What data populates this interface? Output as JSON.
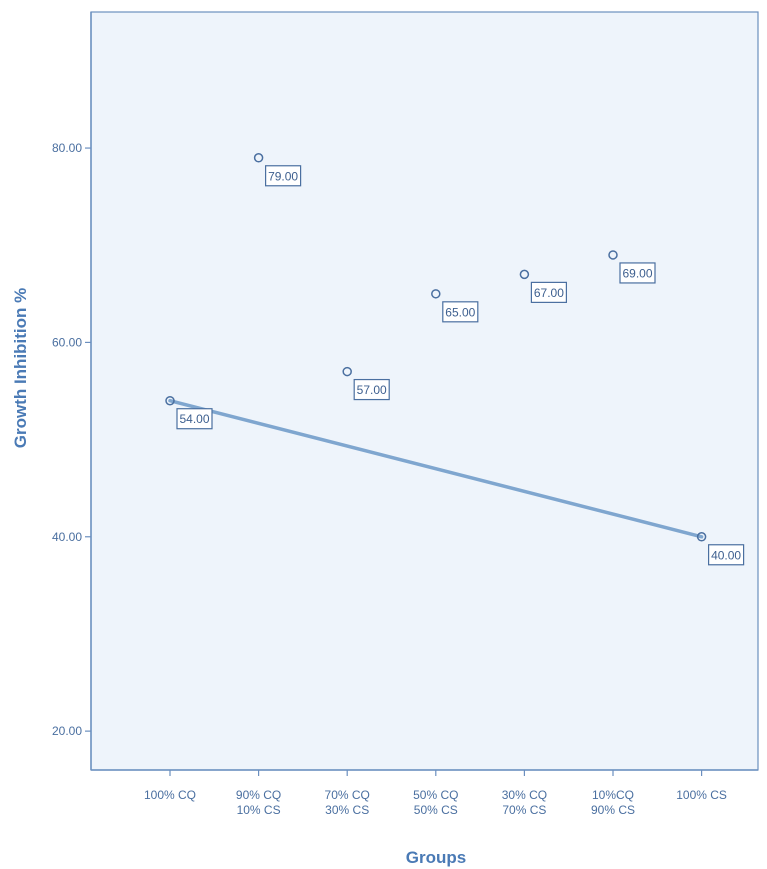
{
  "chart_data": {
    "type": "scatter",
    "xlabel": "Groups",
    "ylabel": "Growth Inhibition %",
    "categories": [
      [
        "100% CQ"
      ],
      [
        "90% CQ",
        "10% CS"
      ],
      [
        "70% CQ",
        "30% CS"
      ],
      [
        "50% CQ",
        "50% CS"
      ],
      [
        "30% CQ",
        "70% CS"
      ],
      [
        "10%CQ",
        "90% CS"
      ],
      [
        "100%  CS"
      ]
    ],
    "values": [
      54,
      79,
      57,
      65,
      67,
      69,
      40
    ],
    "data_labels": [
      "54.00",
      "79.00",
      "57.00",
      "65.00",
      "67.00",
      "69.00",
      "40.00"
    ],
    "yticks": [
      20,
      40,
      60,
      80
    ],
    "ytick_labels": [
      "20.00",
      "40.00",
      "60.00",
      "80.00"
    ],
    "ylim": [
      16,
      94
    ],
    "trend_line": {
      "from_category": 0,
      "to_category": 6,
      "from_value": 54,
      "to_value": 40
    },
    "grid": false,
    "colors": {
      "plot_background": "#eef4fb",
      "axis": "#6b8fbf",
      "marker": "#4a6fa0",
      "trend_line": "#7fa6cf",
      "axis_title": "#4a7ab5"
    }
  }
}
